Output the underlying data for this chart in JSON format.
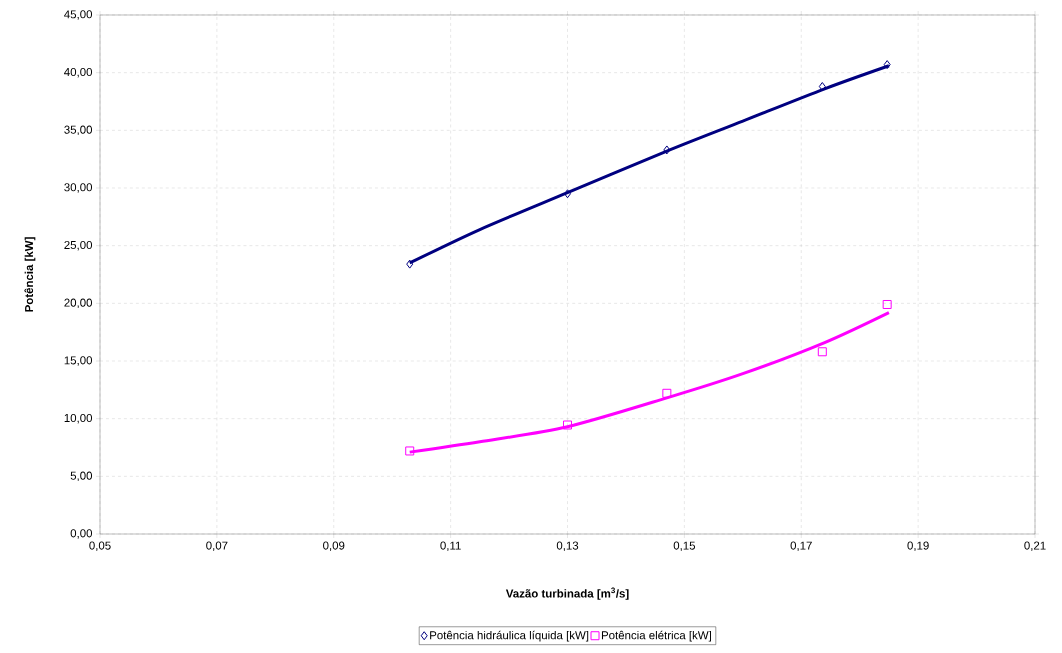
{
  "chart_data": {
    "type": "scatter",
    "xlabel": "Vazão turbinada [m$^{3}$/s]",
    "ylabel": "Potência [kW]",
    "xlim": [
      0.05,
      0.21
    ],
    "xticks": [
      {
        "value": 0.05,
        "label": "0,05"
      },
      {
        "value": 0.07,
        "label": "0,07"
      },
      {
        "value": 0.09,
        "label": "0,09"
      },
      {
        "value": 0.11,
        "label": "0,11"
      },
      {
        "value": 0.13,
        "label": "0,13"
      },
      {
        "value": 0.15,
        "label": "0,15"
      },
      {
        "value": 0.17,
        "label": "0,17"
      },
      {
        "value": 0.19,
        "label": "0,19"
      },
      {
        "value": 0.21,
        "label": "0,21"
      }
    ],
    "ylim": [
      0,
      45
    ],
    "yticks": [
      {
        "value": 0,
        "label": "0,00"
      },
      {
        "value": 5,
        "label": "5,00"
      },
      {
        "value": 10,
        "label": "10,00"
      },
      {
        "value": 15,
        "label": "15,00"
      },
      {
        "value": 20,
        "label": "20,00"
      },
      {
        "value": 25,
        "label": "25,00"
      },
      {
        "value": 30,
        "label": "30,00"
      },
      {
        "value": 35,
        "label": "35,00"
      },
      {
        "value": 40,
        "label": "40,00"
      },
      {
        "value": 45,
        "label": "45,00"
      }
    ],
    "grid": true,
    "legend": "bottom",
    "series": [
      {
        "name": "Potência hidráulica líquida [kW]",
        "color": "#000080",
        "marker": "diamond",
        "x": [
          0.103,
          0.13,
          0.147,
          0.1736,
          0.1847
        ],
        "values": [
          23.4,
          29.5,
          33.3,
          38.8,
          40.7
        ]
      },
      {
        "name": "Potência elétrica [kW]",
        "color": "#ff00ff",
        "marker": "square",
        "x": [
          0.103,
          0.13,
          0.147,
          0.1736,
          0.1847
        ],
        "values": [
          7.2,
          9.45,
          12.2,
          15.8,
          19.9
        ]
      },
      {
        "type": "line",
        "color": "#000080",
        "marker": "none",
        "line_style": "solid",
        "x": [
          0.103,
          0.115,
          0.13,
          0.147,
          0.16,
          0.174,
          0.185
        ],
        "values": [
          23.5,
          26.4,
          29.6,
          33.2,
          35.8,
          38.6,
          40.6
        ]
      },
      {
        "type": "line",
        "color": "#ff00ff",
        "marker": "none",
        "line_style": "solid",
        "x": [
          0.103,
          0.115,
          0.13,
          0.147,
          0.16,
          0.174,
          0.185
        ],
        "values": [
          7.1,
          8.0,
          9.3,
          11.8,
          13.9,
          16.6,
          19.2
        ]
      }
    ]
  }
}
